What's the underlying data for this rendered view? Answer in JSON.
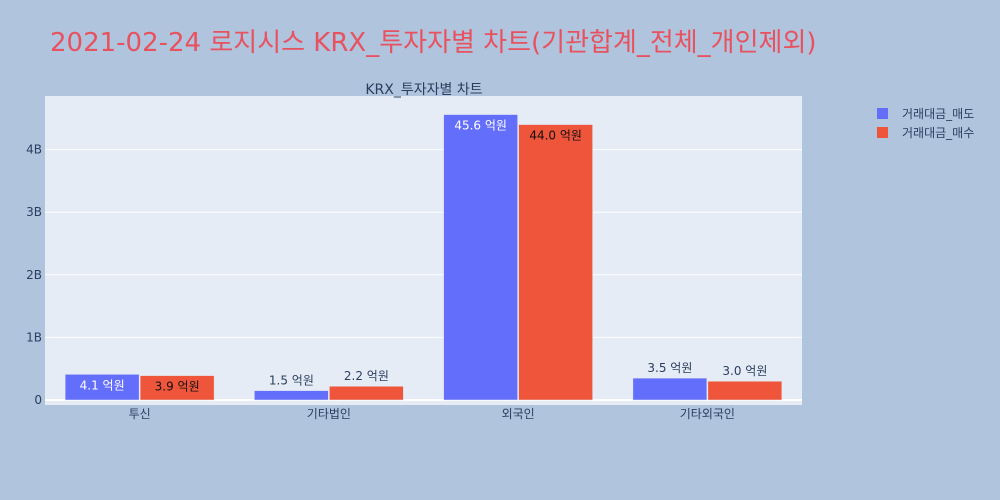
{
  "page": {
    "title": "2021-02-24 로지시스 KRX_투자자별 차트(기관합계_전체_개인제외)"
  },
  "chart_data": {
    "type": "bar",
    "title": "KRX_투자자별 차트",
    "categories": [
      "투신",
      "기타법인",
      "외국인",
      "기타외국인"
    ],
    "series": [
      {
        "name": "거래대금_매도",
        "color": "#636efa",
        "values": [
          0.41,
          0.15,
          4.56,
          0.35
        ],
        "labels": [
          "4.1 억원",
          "1.5 억원",
          "45.6 억원",
          "3.5 억원"
        ]
      },
      {
        "name": "거래대금_매수",
        "color": "#ef553b",
        "values": [
          0.39,
          0.22,
          4.4,
          0.3
        ],
        "labels": [
          "3.9 억원",
          "2.2 억원",
          "44.0 억원",
          "3.0 억원"
        ]
      }
    ],
    "y_ticks": [
      {
        "value": 0,
        "label": "0"
      },
      {
        "value": 1,
        "label": "1B"
      },
      {
        "value": 2,
        "label": "2B"
      },
      {
        "value": 3,
        "label": "3B"
      },
      {
        "value": 4,
        "label": "4B"
      }
    ],
    "ylim": [
      0,
      4.8
    ],
    "grid": true,
    "legend_position": "right"
  }
}
